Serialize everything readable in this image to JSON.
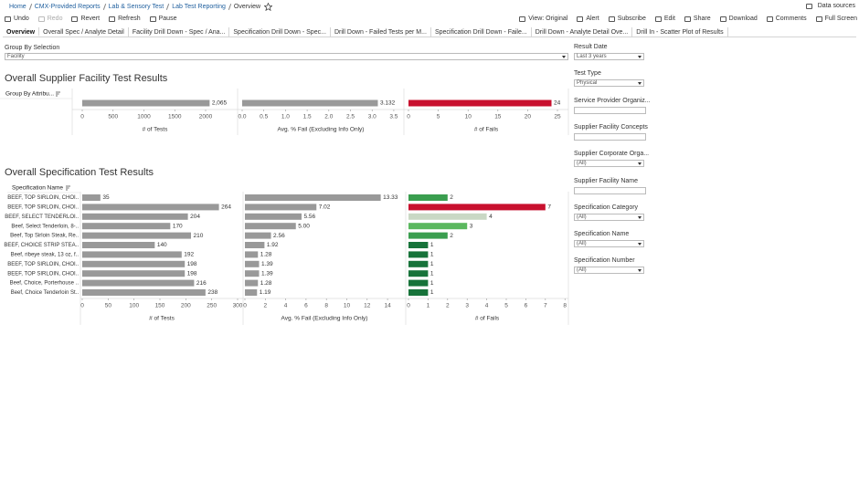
{
  "breadcrumb": [
    "Home",
    "CMX-Provided Reports",
    "Lab & Sensory Test",
    "Lab Test Reporting",
    "Overview"
  ],
  "data_sources": "Data sources",
  "toolbar_left": [
    "Undo",
    "Redo",
    "Revert",
    "Refresh",
    "Pause"
  ],
  "toolbar_right": [
    "View: Original",
    "Alert",
    "Subscribe",
    "Edit",
    "Share",
    "Download",
    "Comments",
    "Full Screen"
  ],
  "tabs": [
    "Overview",
    "Overall Spec / Analyte Detail",
    "Facility Drill Down - Spec / Ana...",
    "Specification Drill Down - Spec...",
    "Drill Down - Failed Tests per M...",
    "Specification Drill Down - Faile...",
    "Drill Down - Analyte Detail Ove...",
    "Drill In - Scatter Plot of Results"
  ],
  "group_by": {
    "label": "Group By Selection",
    "value": "Facility"
  },
  "facility_section": {
    "title": "Overall Supplier Facility Test Results",
    "header": "Group By Attribu...",
    "panes": [
      {
        "axis_title": "# of Tests",
        "xlim": [
          0,
          2500
        ],
        "xticks": [
          0,
          500,
          1000,
          1500,
          2000
        ],
        "values": [
          2065
        ],
        "value_labels": [
          "2,065"
        ],
        "color": "#999999"
      },
      {
        "axis_title": "Avg. % Fail (Excluding Info Only)",
        "xlim": [
          0,
          3.7
        ],
        "xticks": [
          {
            "value": 0,
            "label": "0.0"
          },
          0.5,
          {
            "value": 1,
            "label": "1.0"
          },
          1.5,
          {
            "value": 2,
            "label": "2.0"
          },
          2.5,
          {
            "value": 3,
            "label": "3.0"
          },
          3.5
        ],
        "values": [
          3.132
        ],
        "color": "#999999"
      },
      {
        "axis_title": "# of Fails",
        "xlim": [
          0,
          26.5
        ],
        "xticks": [
          0,
          5,
          10,
          15,
          20,
          25
        ],
        "values": [
          24
        ],
        "color": "#c8102e"
      }
    ]
  },
  "spec_section": {
    "title": "Overall Specification Test Results",
    "header": "Specification Name",
    "categories": [
      "BEEF, TOP SIRLOIN, CHOI..",
      "BEEF, TOP SIRLOIN, CHOI..",
      "BEEF, SELECT TENDERLOI..",
      "Beef, Select Tenderloin, 8-..",
      "Beef, Top Sirloin Steak, Re..",
      "BEEF, CHOICE STRIP STEA..",
      "Beef, ribeye steak, 13 oz, f..",
      "BEEF, TOP SIRLOIN, CHOI..",
      "BEEF, TOP SIRLOIN, CHOI..",
      "Beef, Choice, Porterhouse ..",
      "Beef, Choice Tenderloin St.."
    ],
    "panes": [
      {
        "axis_title": "# of Tests",
        "xlim": [
          0,
          300
        ],
        "xticks": [
          0,
          50,
          100,
          150,
          200,
          250,
          300
        ],
        "values": [
          35,
          264,
          204,
          170,
          210,
          140,
          192,
          198,
          198,
          216,
          238
        ],
        "color": "#999999"
      },
      {
        "axis_title": "Avg. % Fail (Excluding Info Only)",
        "xlim": [
          0,
          15.5
        ],
        "xticks": [
          0,
          2,
          4,
          6,
          8,
          10,
          12,
          14
        ],
        "values": [
          13.33,
          7.02,
          5.56,
          5,
          2.56,
          1.92,
          1.28,
          1.39,
          1.39,
          1.28,
          1.19
        ],
        "value_labels": [
          "13.33",
          "7.02",
          "5.56",
          "5.00",
          "2.56",
          "1.92",
          "1.28",
          "1.39",
          "1.39",
          "1.28",
          "1.19"
        ],
        "color": "#999999"
      },
      {
        "axis_title": "# of Fails",
        "xlim": [
          0,
          8.2
        ],
        "xticks": [
          0,
          1,
          2,
          3,
          4,
          5,
          6,
          7,
          8
        ],
        "values": [
          2,
          7,
          4,
          3,
          2,
          1,
          1,
          1,
          1,
          1,
          1
        ],
        "colors": [
          "#3a9e4f",
          "#c8102e",
          "#c9d8c4",
          "#5bb85f",
          "#3a9e4f",
          "#17733a",
          "#17733a",
          "#17733a",
          "#17733a",
          "#17733a",
          "#17733a"
        ]
      }
    ]
  },
  "filters": [
    {
      "label": "Result Date",
      "value": "Last 3 years"
    },
    {
      "label": "Test Type",
      "value": "Physical"
    },
    {
      "label": "Service Provider Organiz..."
    },
    {
      "label": "Supplier Facility Concepts"
    },
    {
      "label": "Supplier Corporate Orga...",
      "value": "(All)"
    },
    {
      "label": "Supplier Facility Name"
    },
    {
      "label": "Specification Category",
      "value": "(All)"
    },
    {
      "label": "Specification Name",
      "value": "(All)"
    },
    {
      "label": "Specification Number",
      "value": "(All)"
    }
  ]
}
